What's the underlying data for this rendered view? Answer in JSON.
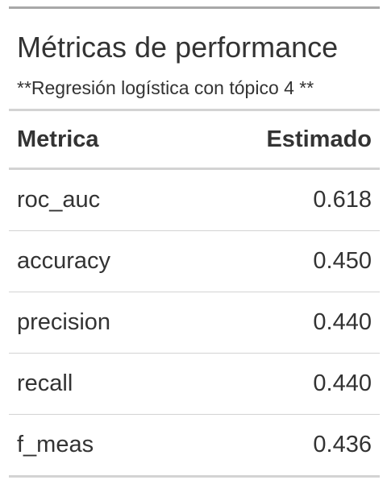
{
  "table": {
    "title": "Métricas de performance",
    "subtitle": "**Regresión logística con tópico 4 **",
    "columns": [
      "Metrica",
      "Estimado"
    ],
    "rows": [
      {
        "metric": "roc_auc",
        "estimate": "0.618"
      },
      {
        "metric": "accuracy",
        "estimate": "0.450"
      },
      {
        "metric": "precision",
        "estimate": "0.440"
      },
      {
        "metric": "recall",
        "estimate": "0.440"
      },
      {
        "metric": "f_meas",
        "estimate": "0.436"
      }
    ]
  }
}
